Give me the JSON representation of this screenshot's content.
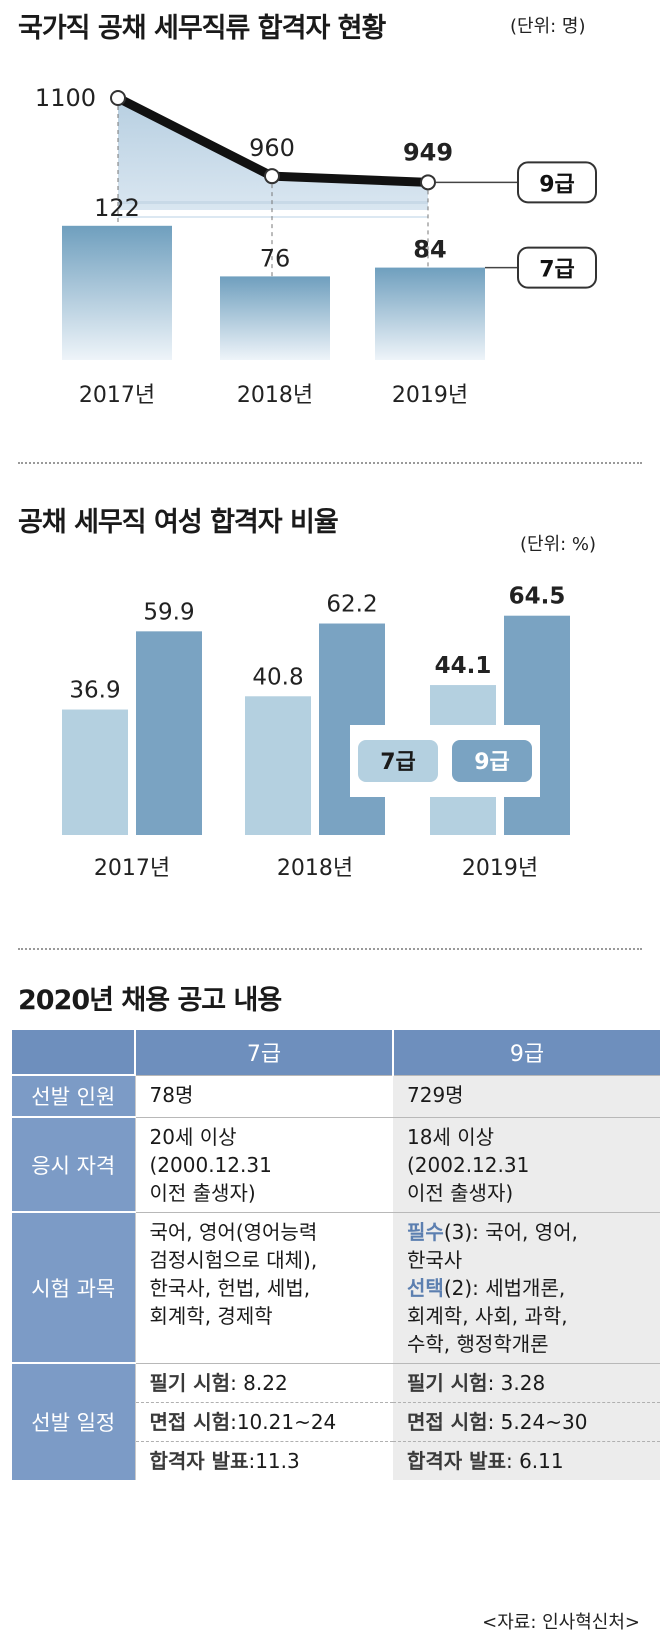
{
  "chart1": {
    "title": "국가직 공채 세무직류 합격자 현황",
    "unit": "(단위: 명)"
  },
  "chart2": {
    "title": "공채 세무직 여성 합격자 비율",
    "unit": "(단위: %)"
  },
  "chart_data": [
    {
      "type": "line",
      "title": "국가직 공채 세무직류 합격자 현황",
      "unit": "(단위: 명)",
      "categories": [
        "2017년",
        "2018년",
        "2019년"
      ],
      "series": [
        {
          "name": "9급",
          "values": [
            1100,
            960,
            949
          ]
        }
      ]
    },
    {
      "type": "bar",
      "title": "국가직 공채 세무직류 합격자 현황",
      "categories": [
        "2017년",
        "2018년",
        "2019년"
      ],
      "series": [
        {
          "name": "7급",
          "values": [
            122,
            76,
            84
          ]
        }
      ]
    },
    {
      "type": "bar",
      "title": "공채 세무직 여성 합격자 비율",
      "unit": "(단위: %)",
      "categories": [
        "2017년",
        "2018년",
        "2019년"
      ],
      "series": [
        {
          "name": "7급",
          "values": [
            36.9,
            40.8,
            44.1
          ]
        },
        {
          "name": "9급",
          "values": [
            59.9,
            62.2,
            64.5
          ]
        }
      ],
      "colors": {
        "7급": "#b4d0e0",
        "9급": "#7aa3c2"
      }
    }
  ],
  "table": {
    "title": "2020년 채용 공고 내용",
    "header": [
      "7급",
      "9급"
    ],
    "rows": [
      {
        "label": "선발 인원",
        "c7": "78명",
        "c9": "729명"
      },
      {
        "label": "응시 자격",
        "c7": [
          "20세 이상",
          "(2000.12.31",
          "이전 출생자)"
        ],
        "c9": [
          "18세 이상",
          "(2002.12.31",
          "이전 출생자)"
        ]
      },
      {
        "label": "시험 과목",
        "c7": [
          "국어, 영어(영어능력",
          "검정시험으로 대체),",
          "한국사, 헌법, 세법,",
          "회계학, 경제학"
        ],
        "c9_required_label": "필수",
        "c9_required_rest": "(3): 국어, 영어,",
        "c9_required_line2": "한국사",
        "c9_choice_label": "선택",
        "c9_choice_rest": "(2): 세법개론,",
        "c9_choice_lines": [
          "회계학, 사회, 과학,",
          "수학, 행정학개론"
        ]
      },
      {
        "label": "선발 일정",
        "items": [
          {
            "label": "필기 시험",
            "c7": ": 8.22",
            "c9": ": 3.28"
          },
          {
            "label": "면접 시험",
            "c7": ":10.21~24",
            "c9": ": 5.24~30"
          },
          {
            "label": "합격자 발표",
            "c7": ":11.3",
            "c9": ": 6.11"
          }
        ]
      }
    ]
  },
  "source": "<자료: 인사혁신처>",
  "colors": {
    "header": "#6e8fbd",
    "row_header": "#7c9bc6",
    "bar7": "#b4d0e0",
    "bar9": "#7aa3c2",
    "highlight": "#5c7fb0"
  }
}
